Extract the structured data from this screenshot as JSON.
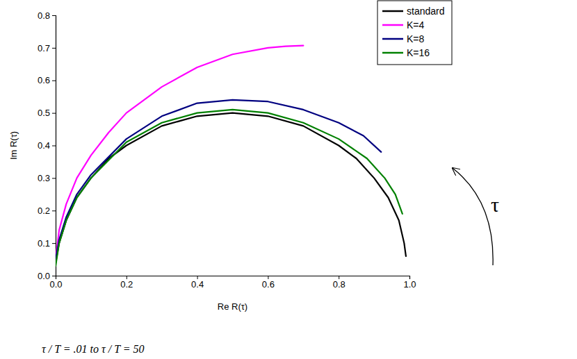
{
  "chart_data": {
    "type": "line",
    "x_label": "Re R(τ)",
    "y_label": "Im R(τ)",
    "xlim": [
      0,
      1.0
    ],
    "ylim": [
      0,
      0.8
    ],
    "xticks": [
      {
        "value": 0,
        "label": "0.0"
      },
      0.2,
      0.4,
      0.6,
      0.8,
      {
        "value": 1,
        "label": "1.0"
      }
    ],
    "yticks": [
      {
        "value": 0,
        "label": "0.0"
      },
      0.1,
      0.2,
      0.3,
      0.4,
      0.5,
      0.6,
      0.7,
      0.8
    ],
    "legend": "upper right",
    "annotations": [
      "τ",
      "τ / T = .01 to τ / T = 50"
    ],
    "series": [
      {
        "name": "standard",
        "color": "#000000",
        "x": [
          0.0,
          0.01,
          0.03,
          0.06,
          0.1,
          0.15,
          0.2,
          0.3,
          0.4,
          0.5,
          0.6,
          0.7,
          0.8,
          0.85,
          0.9,
          0.94,
          0.97,
          0.985,
          0.99
        ],
        "values": [
          0.04,
          0.1,
          0.17,
          0.24,
          0.3,
          0.36,
          0.4,
          0.46,
          0.49,
          0.5,
          0.49,
          0.46,
          0.4,
          0.36,
          0.3,
          0.24,
          0.17,
          0.1,
          0.06
        ]
      },
      {
        "name": "K=4",
        "color": "#ff00ff",
        "x": [
          0.0,
          0.01,
          0.03,
          0.06,
          0.1,
          0.15,
          0.2,
          0.3,
          0.4,
          0.5,
          0.6,
          0.65,
          0.7
        ],
        "values": [
          0.05,
          0.14,
          0.22,
          0.3,
          0.37,
          0.44,
          0.5,
          0.58,
          0.64,
          0.68,
          0.7,
          0.705,
          0.707
        ]
      },
      {
        "name": "K=8",
        "color": "#000080",
        "x": [
          0.0,
          0.01,
          0.03,
          0.06,
          0.1,
          0.2,
          0.3,
          0.4,
          0.5,
          0.6,
          0.7,
          0.8,
          0.87,
          0.92
        ],
        "values": [
          0.05,
          0.11,
          0.18,
          0.25,
          0.31,
          0.42,
          0.49,
          0.53,
          0.54,
          0.535,
          0.51,
          0.47,
          0.43,
          0.38
        ]
      },
      {
        "name": "K=16",
        "color": "#008000",
        "x": [
          0.0,
          0.01,
          0.03,
          0.06,
          0.1,
          0.2,
          0.3,
          0.4,
          0.5,
          0.6,
          0.7,
          0.8,
          0.88,
          0.93,
          0.96,
          0.98
        ],
        "values": [
          0.03,
          0.1,
          0.17,
          0.24,
          0.3,
          0.41,
          0.47,
          0.5,
          0.51,
          0.5,
          0.47,
          0.42,
          0.36,
          0.3,
          0.25,
          0.19
        ]
      }
    ]
  }
}
